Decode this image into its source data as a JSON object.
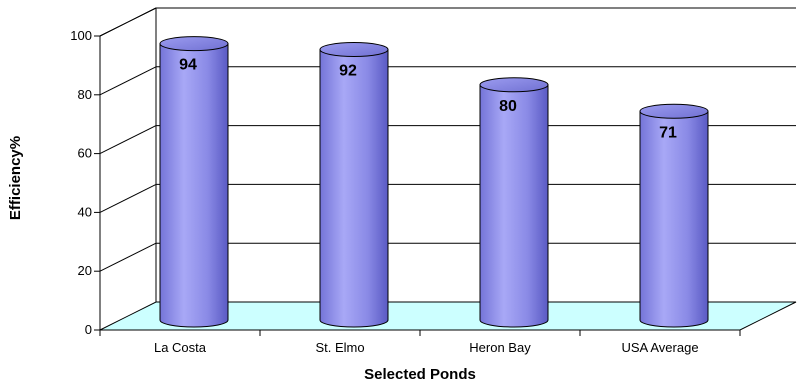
{
  "chart_data": {
    "type": "bar",
    "title": "",
    "xlabel": "Selected Ponds",
    "ylabel": "Efficiency%",
    "categories": [
      "La Costa",
      "St. Elmo",
      "Heron Bay",
      "USA Average"
    ],
    "values": [
      94,
      92,
      80,
      71
    ],
    "ylim": [
      0,
      100
    ],
    "yticks": [
      "0",
      "20",
      "40",
      "60",
      "80",
      "100"
    ],
    "grid": true,
    "legend": "none",
    "style": "3d-cylinder",
    "colors": {
      "bar": "#8a8ae6",
      "bar_dark": "#5a5ac4",
      "floor": "#ccffff",
      "grid": "#000000"
    }
  }
}
